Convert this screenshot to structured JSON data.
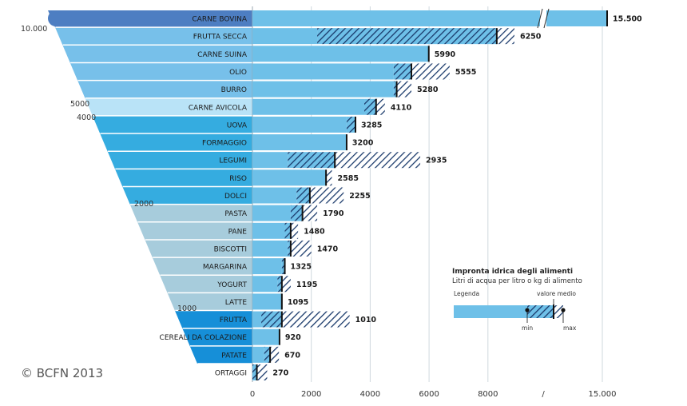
{
  "chart_data": {
    "type": "bar",
    "title": "",
    "xlabel": "",
    "ylabel": "",
    "xlim": [
      0,
      15500
    ],
    "x_ticks": [
      "0",
      "2000",
      "4000",
      "6000",
      "8000",
      "15.000"
    ],
    "categories": [
      "CARNE BOVINA",
      "FRUTTA SECCA",
      "CARNE SUINA",
      "OLIO",
      "BURRO",
      "CARNE AVICOLA",
      "UOVA",
      "FORMAGGIO",
      "LEGUMI",
      "RISO",
      "DOLCI",
      "PASTA",
      "PANE",
      "BISCOTTI",
      "MARGARINA",
      "YOGURT",
      "LATTE",
      "FRUTTA",
      "CEREALI DA COLAZIONE",
      "PATATE",
      "ORTAGGI"
    ],
    "series": [
      {
        "values": [
          15500,
          6250,
          5990,
          5555,
          5280,
          4110,
          3285,
          3200,
          2935,
          2585,
          2255,
          1790,
          1480,
          1470,
          1325,
          1195,
          1095,
          1010,
          920,
          670,
          270
        ]
      }
    ],
    "value_labels": [
      "15.500",
      "6250",
      "5990",
      "5555",
      "5280",
      "4110",
      "3285",
      "3200",
      "2935",
      "2585",
      "2255",
      "1790",
      "1480",
      "1470",
      "1325",
      "1195",
      "1095",
      "1010",
      "920",
      "670",
      "270"
    ],
    "mean": [
      15500,
      8300,
      5990,
      5400,
      4900,
      4200,
      3500,
      3200,
      2800,
      2500,
      1950,
      1700,
      1300,
      1300,
      1100,
      1000,
      1000,
      1000,
      920,
      600,
      150
    ],
    "min": [
      null,
      2200,
      null,
      4800,
      4800,
      3800,
      3200,
      null,
      1200,
      2500,
      1500,
      1300,
      1100,
      1200,
      1000,
      850,
      1000,
      300,
      null,
      400,
      0
    ],
    "max": [
      null,
      8900,
      null,
      6700,
      5400,
      4500,
      3500,
      null,
      5700,
      2700,
      3100,
      2200,
      1550,
      2000,
      null,
      1300,
      null,
      3300,
      null,
      900,
      500
    ],
    "x_axis_break": true,
    "grid": true
  },
  "side_scale": [
    "10.000",
    "5000",
    "4000",
    "2000",
    "1000"
  ],
  "legend": {
    "title": "Impronta idrica degli alimenti",
    "subtitle": "Litri di acqua per litro o kg di alimento",
    "label": "Legenda",
    "mean_label": "valore medio",
    "min_label": "min",
    "max_label": "max"
  },
  "copyright": "© BCFN 2013",
  "colors": {
    "bar": "#6ec0e8",
    "hatch": "#1a3a6b",
    "funnel_top": "#4d7ec2",
    "funnel_blue": "#77c0ea",
    "funnel_light": "#b9e3f7",
    "funnel_mid": "#35ace0",
    "funnel_gray": "#a7ccdc",
    "funnel_bright": "#168fd8"
  }
}
